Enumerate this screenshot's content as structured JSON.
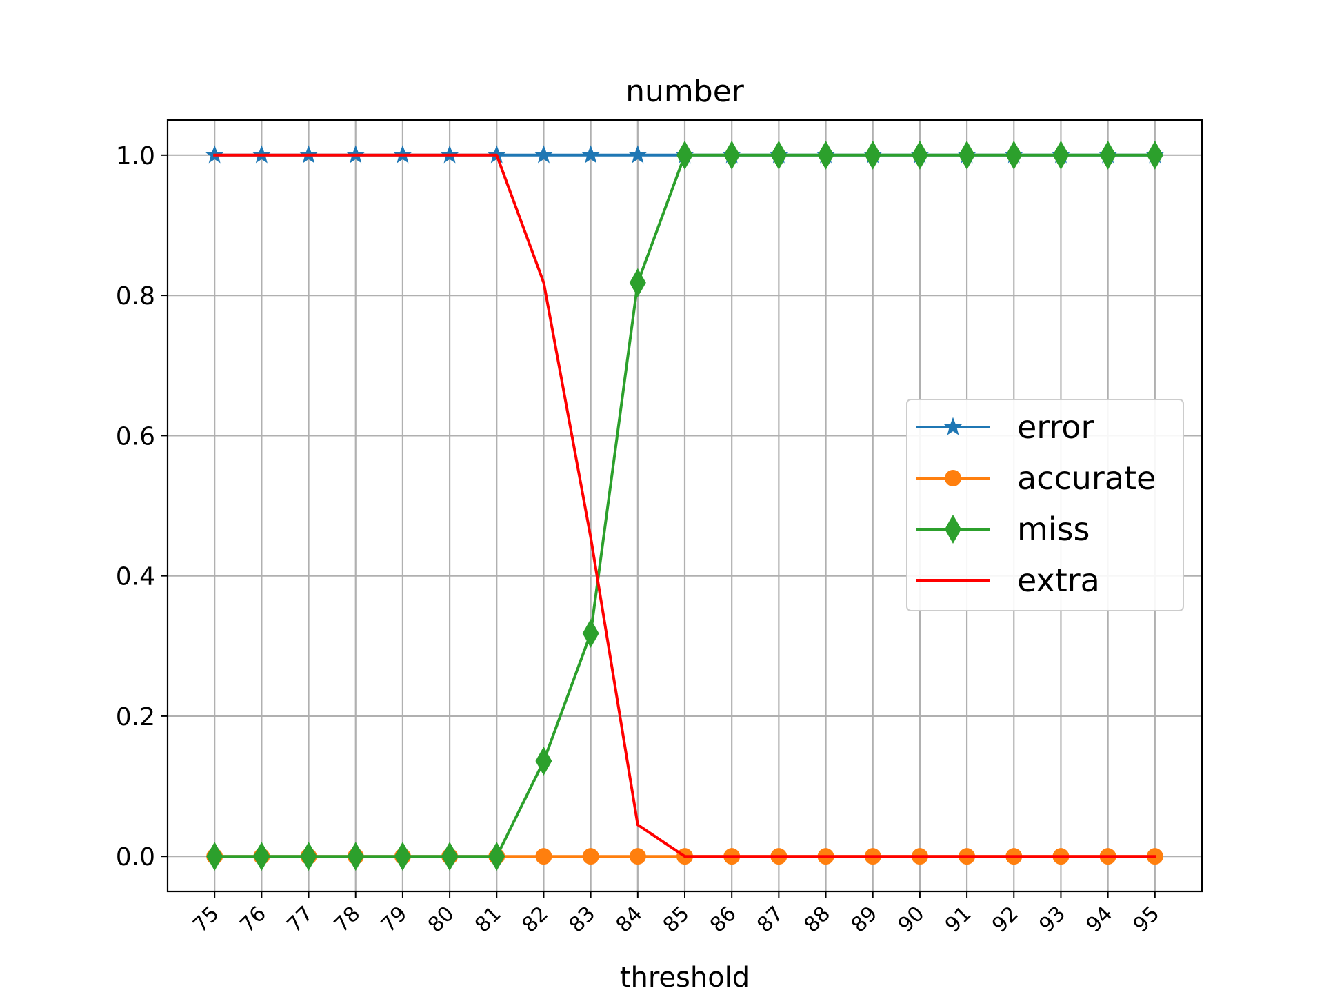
{
  "chart_data": {
    "type": "line",
    "title": "number",
    "xlabel": "threshold",
    "ylabel": "",
    "x": [
      75,
      76,
      77,
      78,
      79,
      80,
      81,
      82,
      83,
      84,
      85,
      86,
      87,
      88,
      89,
      90,
      91,
      92,
      93,
      94,
      95
    ],
    "x_tick_labels": [
      "75",
      "76",
      "77",
      "78",
      "79",
      "80",
      "81",
      "82",
      "83",
      "84",
      "85",
      "86",
      "87",
      "88",
      "89",
      "90",
      "91",
      "92",
      "93",
      "94",
      "95"
    ],
    "y_ticks": [
      0.0,
      0.2,
      0.4,
      0.6,
      0.8,
      1.0
    ],
    "y_tick_labels": [
      "0.0",
      "0.2",
      "0.4",
      "0.6",
      "0.8",
      "1.0"
    ],
    "xlim": [
      74,
      96
    ],
    "ylim": [
      -0.05,
      1.05
    ],
    "grid": true,
    "legend_position": "center-right",
    "series": [
      {
        "name": "error",
        "color": "#1f77b4",
        "marker": "star",
        "values": [
          1,
          1,
          1,
          1,
          1,
          1,
          1,
          1,
          1,
          1,
          1,
          1,
          1,
          1,
          1,
          1,
          1,
          1,
          1,
          1,
          1
        ]
      },
      {
        "name": "accurate",
        "color": "#ff7f0e",
        "marker": "circle",
        "values": [
          0,
          0,
          0,
          0,
          0,
          0,
          0,
          0,
          0,
          0,
          0,
          0,
          0,
          0,
          0,
          0,
          0,
          0,
          0,
          0,
          0
        ]
      },
      {
        "name": "miss",
        "color": "#2ca02c",
        "marker": "thin-diamond",
        "values": [
          0,
          0,
          0,
          0,
          0,
          0,
          0,
          0.136,
          0.318,
          0.818,
          1,
          1,
          1,
          1,
          1,
          1,
          1,
          1,
          1,
          1,
          1
        ]
      },
      {
        "name": "extra",
        "color": "#ff0000",
        "marker": "none",
        "values": [
          1,
          1,
          1,
          1,
          1,
          1,
          1,
          0.818,
          0.455,
          0.045,
          0,
          0,
          0,
          0,
          0,
          0,
          0,
          0,
          0,
          0,
          0
        ]
      }
    ]
  }
}
